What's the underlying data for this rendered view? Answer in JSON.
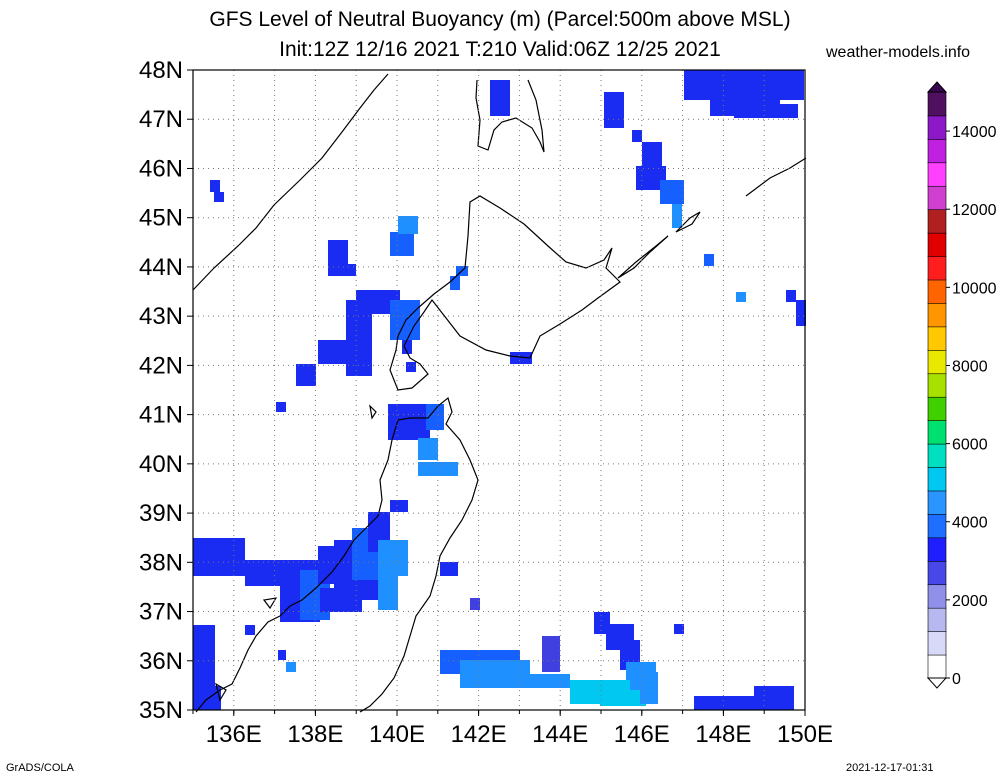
{
  "title": {
    "line1": "GFS Level of Neutral Buoyancy (m) (Parcel:500m above MSL)",
    "line2": "Init:12Z 12/16 2021 T:210 Valid:06Z 12/25 2021"
  },
  "site_label": "weather-models.info",
  "footer": {
    "left": "GrADS/COLA",
    "right": "2021-12-17-01:31"
  },
  "map": {
    "lon_range": [
      135,
      150
    ],
    "lat_range": [
      35,
      48
    ],
    "lon_labels": [
      "136E",
      "138E",
      "140E",
      "142E",
      "144E",
      "146E",
      "148E",
      "150E"
    ],
    "lat_labels": [
      "35N",
      "36N",
      "37N",
      "38N",
      "39N",
      "40N",
      "41N",
      "42N",
      "43N",
      "44N",
      "45N",
      "46N",
      "47N",
      "48N"
    ],
    "grid": true
  },
  "colorbar": {
    "tick_labels": [
      "0",
      "2000",
      "4000",
      "6000",
      "8000",
      "10000",
      "12000",
      "14000"
    ],
    "colors": [
      "#ffffff",
      "#d8d8f8",
      "#b8b8f0",
      "#9090e8",
      "#4848e8",
      "#1e1eff",
      "#1e6eff",
      "#2b95ff",
      "#00c8f0",
      "#00e0c0",
      "#00e070",
      "#40d000",
      "#a8e000",
      "#e8e800",
      "#ffc800",
      "#ff9600",
      "#ff6400",
      "#ff1e1e",
      "#e00000",
      "#b02020",
      "#d040d0",
      "#ff40ff",
      "#c020e0",
      "#8c18c8",
      "#501060"
    ]
  },
  "field_colors": {
    "blue": "#1a2cf2",
    "mid_blue": "#1560ff",
    "light_blue": "#1e90ff",
    "cyan": "#00c8f0",
    "violet": "#4040e0"
  }
}
